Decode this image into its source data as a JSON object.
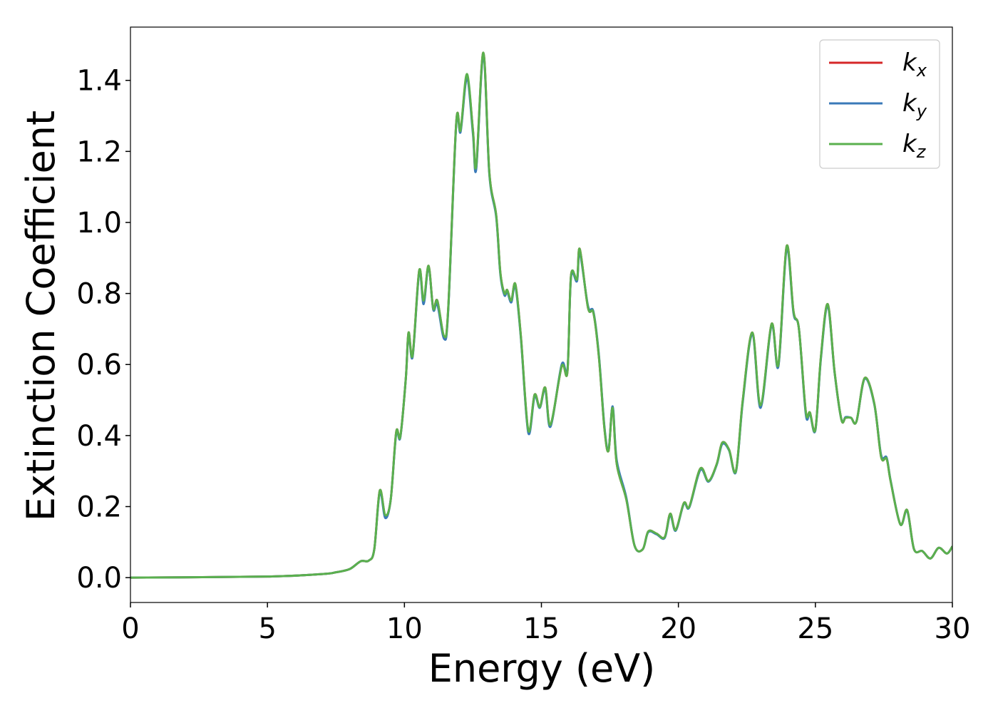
{
  "chart_data": {
    "type": "line",
    "xlabel": "Energy (eV)",
    "ylabel": "Extinction Coefficient",
    "xlim": [
      0,
      30
    ],
    "ylim": [
      -0.07,
      1.55
    ],
    "xticks": [
      0,
      5,
      10,
      15,
      20,
      25,
      30
    ],
    "yticks": [
      {
        "value": 0,
        "label": "0.0"
      },
      0.2,
      0.4,
      0.6,
      0.8,
      {
        "value": 1,
        "label": "1.0"
      },
      1.2,
      1.4
    ],
    "legend": "upper right",
    "x": [
      0,
      5,
      7,
      7.5,
      8,
      8.4,
      8.7,
      8.9,
      9.1,
      9.3,
      9.5,
      9.7,
      9.85,
      10.05,
      10.15,
      10.3,
      10.54,
      10.7,
      10.88,
      11.05,
      11.2,
      11.45,
      11.6,
      11.89,
      12.05,
      12.28,
      12.5,
      12.62,
      12.88,
      13.1,
      13.35,
      13.5,
      13.65,
      13.75,
      13.9,
      14.05,
      14.25,
      14.52,
      14.75,
      14.94,
      15.14,
      15.33,
      15.74,
      15.95,
      16.08,
      16.3,
      16.4,
      16.7,
      16.9,
      17.1,
      17.3,
      17.45,
      17.6,
      17.75,
      18.1,
      18.4,
      18.7,
      18.9,
      19.2,
      19.5,
      19.7,
      19.9,
      20.2,
      20.4,
      20.8,
      21.1,
      21.4,
      21.6,
      21.85,
      22.1,
      22.35,
      22.7,
      23.0,
      23.4,
      23.65,
      23.95,
      24.2,
      24.4,
      24.65,
      24.8,
      25.0,
      25.2,
      25.45,
      25.7,
      25.95,
      26.1,
      26.3,
      26.5,
      26.8,
      27.15,
      27.4,
      27.6,
      27.75,
      28.1,
      28.35,
      28.6,
      28.9,
      29.2,
      29.5,
      29.8,
      30
    ],
    "series": [
      {
        "name": "kx",
        "color": "#d62728",
        "values": [
          0,
          0.003,
          0.01,
          0.015,
          0.024,
          0.046,
          0.048,
          0.08,
          0.245,
          0.174,
          0.22,
          0.41,
          0.397,
          0.56,
          0.69,
          0.626,
          0.865,
          0.775,
          0.878,
          0.758,
          0.78,
          0.678,
          0.76,
          1.28,
          1.26,
          1.41,
          1.26,
          1.155,
          1.478,
          1.14,
          1.02,
          0.86,
          0.8,
          0.81,
          0.78,
          0.826,
          0.68,
          0.412,
          0.515,
          0.48,
          0.535,
          0.428,
          0.595,
          0.58,
          0.85,
          0.838,
          0.925,
          0.76,
          0.745,
          0.62,
          0.42,
          0.357,
          0.48,
          0.32,
          0.22,
          0.09,
          0.08,
          0.13,
          0.124,
          0.114,
          0.18,
          0.134,
          0.21,
          0.2,
          0.307,
          0.272,
          0.32,
          0.38,
          0.36,
          0.3,
          0.5,
          0.69,
          0.482,
          0.714,
          0.598,
          0.933,
          0.75,
          0.7,
          0.467,
          0.465,
          0.417,
          0.62,
          0.77,
          0.58,
          0.445,
          0.45,
          0.45,
          0.44,
          0.562,
          0.49,
          0.34,
          0.335,
          0.27,
          0.15,
          0.19,
          0.08,
          0.075,
          0.054,
          0.084,
          0.068,
          0.088
        ]
      },
      {
        "name": "ky",
        "color": "#3a7ab8",
        "values": [
          0,
          0.003,
          0.01,
          0.015,
          0.024,
          0.046,
          0.048,
          0.08,
          0.24,
          0.168,
          0.22,
          0.405,
          0.395,
          0.56,
          0.685,
          0.622,
          0.86,
          0.77,
          0.875,
          0.755,
          0.77,
          0.672,
          0.755,
          1.275,
          1.255,
          1.405,
          1.25,
          1.15,
          1.47,
          1.135,
          1.015,
          0.855,
          0.795,
          0.805,
          0.775,
          0.82,
          0.675,
          0.408,
          0.51,
          0.478,
          0.53,
          0.425,
          0.6,
          0.585,
          0.845,
          0.835,
          0.915,
          0.765,
          0.748,
          0.625,
          0.425,
          0.36,
          0.482,
          0.33,
          0.225,
          0.09,
          0.08,
          0.128,
          0.122,
          0.112,
          0.176,
          0.132,
          0.208,
          0.198,
          0.303,
          0.27,
          0.318,
          0.376,
          0.358,
          0.298,
          0.495,
          0.685,
          0.478,
          0.71,
          0.595,
          0.925,
          0.745,
          0.7,
          0.46,
          0.462,
          0.415,
          0.615,
          0.765,
          0.578,
          0.445,
          0.452,
          0.45,
          0.44,
          0.56,
          0.488,
          0.345,
          0.338,
          0.272,
          0.15,
          0.188,
          0.08,
          0.075,
          0.054,
          0.084,
          0.068,
          0.088
        ]
      },
      {
        "name": "kz",
        "color": "#5ab04e",
        "values": [
          0,
          0.003,
          0.01,
          0.015,
          0.024,
          0.046,
          0.048,
          0.08,
          0.245,
          0.176,
          0.22,
          0.41,
          0.397,
          0.56,
          0.69,
          0.626,
          0.865,
          0.78,
          0.878,
          0.758,
          0.78,
          0.68,
          0.76,
          1.28,
          1.26,
          1.418,
          1.26,
          1.16,
          1.478,
          1.14,
          1.02,
          0.86,
          0.8,
          0.81,
          0.78,
          0.826,
          0.68,
          0.415,
          0.515,
          0.48,
          0.535,
          0.43,
          0.595,
          0.58,
          0.85,
          0.84,
          0.925,
          0.76,
          0.745,
          0.62,
          0.42,
          0.357,
          0.478,
          0.32,
          0.22,
          0.09,
          0.08,
          0.13,
          0.124,
          0.114,
          0.18,
          0.134,
          0.21,
          0.2,
          0.307,
          0.272,
          0.32,
          0.38,
          0.36,
          0.3,
          0.5,
          0.69,
          0.485,
          0.714,
          0.6,
          0.933,
          0.75,
          0.7,
          0.467,
          0.465,
          0.417,
          0.62,
          0.77,
          0.58,
          0.445,
          0.45,
          0.45,
          0.44,
          0.562,
          0.49,
          0.34,
          0.335,
          0.27,
          0.15,
          0.19,
          0.08,
          0.075,
          0.054,
          0.084,
          0.068,
          0.088
        ]
      }
    ]
  }
}
